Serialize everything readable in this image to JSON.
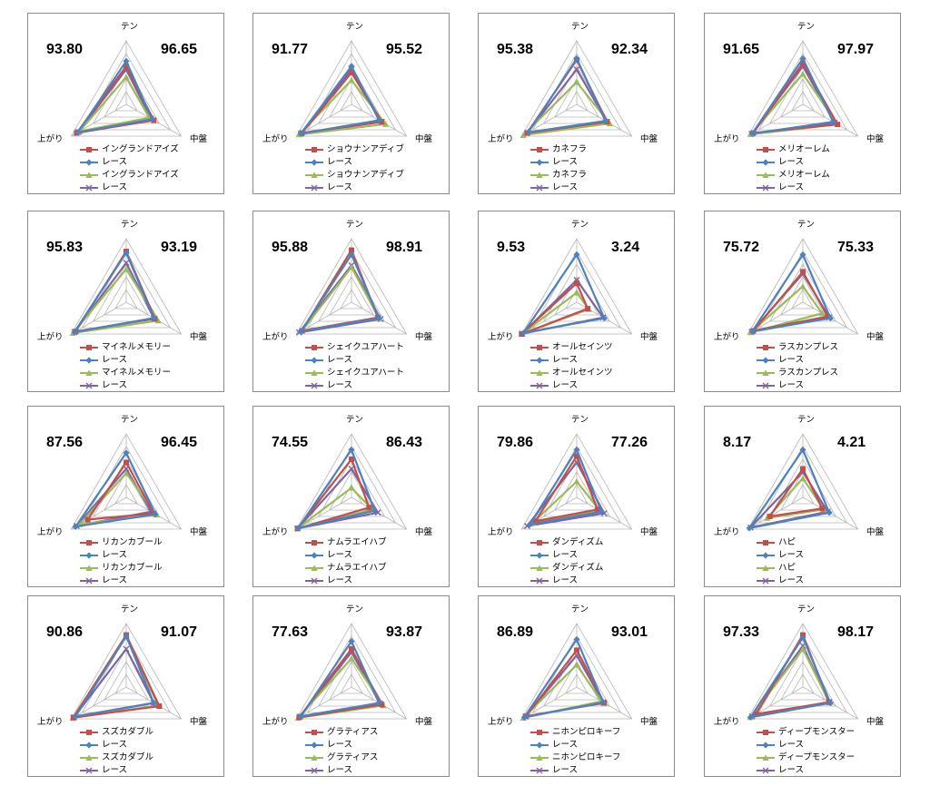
{
  "axes": [
    "テン",
    "上がり",
    "中盤"
  ],
  "colors": {
    "horse": "#c0504d",
    "race": "#4f81bd",
    "horse_avg": "#9bbb59",
    "race_avg": "#8064a2"
  },
  "race_label": "レース",
  "chart_data": [
    {
      "type": "radar",
      "horse": "イングランドアイズ",
      "score_left": "93.80",
      "score_right": "96.65",
      "series": [
        [
          0.6,
          0.9,
          0.5
        ],
        [
          0.68,
          0.88,
          0.47
        ],
        [
          0.43,
          0.85,
          0.42
        ],
        [
          0.55,
          0.87,
          0.45
        ]
      ]
    },
    {
      "type": "radar",
      "horse": "ショウナンアディブ",
      "score_left": "91.77",
      "score_right": "95.52",
      "series": [
        [
          0.5,
          0.9,
          0.55
        ],
        [
          0.6,
          0.92,
          0.5
        ],
        [
          0.38,
          0.95,
          0.62
        ],
        [
          0.55,
          0.92,
          0.55
        ]
      ]
    },
    {
      "type": "radar",
      "horse": "カネフラ",
      "score_left": "95.38",
      "score_right": "92.34",
      "series": [
        [
          0.7,
          0.9,
          0.55
        ],
        [
          0.72,
          0.88,
          0.52
        ],
        [
          0.35,
          0.97,
          0.6
        ],
        [
          0.55,
          0.9,
          0.55
        ]
      ]
    },
    {
      "type": "radar",
      "horse": "メリオーレム",
      "score_left": "91.65",
      "score_right": "97.97",
      "series": [
        [
          0.65,
          0.9,
          0.63
        ],
        [
          0.72,
          0.92,
          0.55
        ],
        [
          0.48,
          0.94,
          0.63
        ],
        [
          0.6,
          0.93,
          0.58
        ]
      ]
    },
    {
      "type": "radar",
      "horse": "マイネルメモリー",
      "score_left": "95.83",
      "score_right": "93.19",
      "series": [
        [
          0.8,
          0.92,
          0.52
        ],
        [
          0.78,
          0.94,
          0.5
        ],
        [
          0.52,
          0.97,
          0.58
        ],
        [
          0.62,
          0.94,
          0.5
        ]
      ]
    },
    {
      "type": "radar",
      "horse": "シェイクユアハート",
      "score_left": "95.88",
      "score_right": "98.91",
      "series": [
        [
          0.82,
          0.9,
          0.48
        ],
        [
          0.75,
          0.92,
          0.5
        ],
        [
          0.55,
          0.9,
          0.5
        ],
        [
          0.58,
          0.95,
          0.53
        ]
      ]
    },
    {
      "type": "radar",
      "horse": "オールセインツ",
      "score_left": "9.53",
      "score_right": "3.24",
      "series": [
        [
          0.3,
          1.0,
          0.2
        ],
        [
          0.75,
          0.97,
          0.5
        ],
        [
          0.15,
          1.0,
          0.22
        ],
        [
          0.35,
          0.99,
          0.48
        ]
      ]
    },
    {
      "type": "radar",
      "horse": "ラスカンプレス",
      "score_left": "75.72",
      "score_right": "75.33",
      "series": [
        [
          0.48,
          0.9,
          0.45
        ],
        [
          0.75,
          0.92,
          0.5
        ],
        [
          0.25,
          0.95,
          0.35
        ],
        [
          0.45,
          0.93,
          0.48
        ]
      ]
    },
    {
      "type": "radar",
      "horse": "リカンカブール",
      "score_left": "87.56",
      "score_right": "96.45",
      "series": [
        [
          0.55,
          0.7,
          0.5
        ],
        [
          0.7,
          0.92,
          0.53
        ],
        [
          0.38,
          0.85,
          0.55
        ],
        [
          0.45,
          0.9,
          0.45
        ]
      ]
    },
    {
      "type": "radar",
      "horse": "ナムラエイハブ",
      "score_left": "74.55",
      "score_right": "86.43",
      "series": [
        [
          0.6,
          0.98,
          0.32
        ],
        [
          0.75,
          0.97,
          0.42
        ],
        [
          0.15,
          0.98,
          0.38
        ],
        [
          0.45,
          0.98,
          0.48
        ]
      ]
    },
    {
      "type": "radar",
      "horse": "ダンディズム",
      "score_left": "79.86",
      "score_right": "77.26",
      "series": [
        [
          0.65,
          0.75,
          0.38
        ],
        [
          0.75,
          0.85,
          0.45
        ],
        [
          0.25,
          0.8,
          0.42
        ],
        [
          0.55,
          0.9,
          0.5
        ]
      ]
    },
    {
      "type": "radar",
      "horse": "ハピ",
      "score_left": "8.17",
      "score_right": "4.21",
      "series": [
        [
          0.45,
          0.6,
          0.35
        ],
        [
          0.75,
          0.97,
          0.48
        ],
        [
          0.3,
          0.65,
          0.38
        ],
        [
          0.4,
          0.95,
          0.45
        ]
      ]
    },
    {
      "type": "radar",
      "horse": "スズカダブル",
      "score_left": "90.86",
      "score_right": "91.07",
      "series": [
        [
          0.82,
          0.96,
          0.6
        ],
        [
          0.8,
          0.92,
          0.5
        ],
        [
          0.8,
          0.97,
          0.58
        ],
        [
          0.6,
          0.95,
          0.5
        ]
      ]
    },
    {
      "type": "radar",
      "horse": "グラティアス",
      "score_left": "77.63",
      "score_right": "93.87",
      "series": [
        [
          0.6,
          0.95,
          0.55
        ],
        [
          0.72,
          0.92,
          0.5
        ],
        [
          0.45,
          0.97,
          0.58
        ],
        [
          0.55,
          0.93,
          0.52
        ]
      ]
    },
    {
      "type": "radar",
      "horse": "ニホンピロキーフ",
      "score_left": "86.89",
      "score_right": "93.01",
      "series": [
        [
          0.58,
          0.92,
          0.5
        ],
        [
          0.75,
          0.95,
          0.48
        ],
        [
          0.35,
          0.97,
          0.45
        ],
        [
          0.5,
          0.93,
          0.48
        ]
      ]
    },
    {
      "type": "radar",
      "horse": "ディープモンスター",
      "score_left": "97.33",
      "score_right": "98.17",
      "series": [
        [
          0.82,
          0.85,
          0.48
        ],
        [
          0.78,
          0.95,
          0.5
        ],
        [
          0.6,
          0.95,
          0.48
        ],
        [
          0.65,
          0.92,
          0.47
        ]
      ]
    }
  ]
}
